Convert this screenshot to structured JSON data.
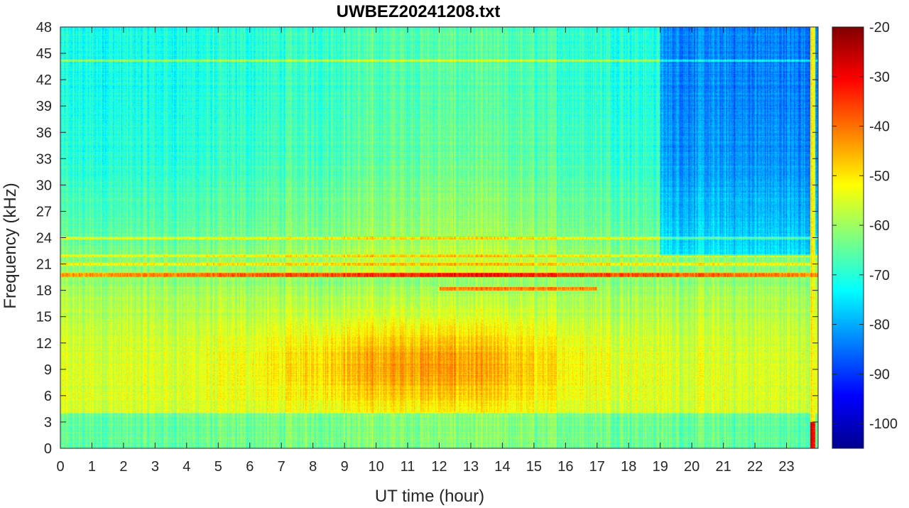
{
  "chart_data": {
    "type": "heatmap",
    "title": "UWBEZ20241208.txt",
    "xlabel": "UT time (hour)",
    "ylabel": "Frequency (kHz)",
    "xlim": [
      0,
      24
    ],
    "ylim": [
      0,
      48
    ],
    "xticks": [
      "0",
      "1",
      "2",
      "3",
      "4",
      "5",
      "6",
      "7",
      "8",
      "9",
      "10",
      "11",
      "12",
      "13",
      "14",
      "15",
      "16",
      "17",
      "18",
      "19",
      "20",
      "21",
      "22",
      "23"
    ],
    "yticks": [
      "0",
      "3",
      "6",
      "9",
      "12",
      "15",
      "18",
      "21",
      "24",
      "27",
      "30",
      "33",
      "36",
      "39",
      "42",
      "45",
      "48"
    ],
    "colorbar": {
      "colormap": "jet",
      "clim": [
        -105,
        -20
      ],
      "ticks": [
        "-20",
        "-30",
        "-40",
        "-50",
        "-60",
        "-70",
        "-80",
        "-90",
        "-100"
      ]
    },
    "features": {
      "background_level_low_freq": -55,
      "background_level_high_freq": -72,
      "strong_line_khz": 19.8,
      "strong_line_level": -32,
      "secondary_line_khz": 18.2,
      "secondary_line_level": -42,
      "daytime_peak_hours": [
        6,
        15
      ],
      "daytime_peak_freq_khz": [
        4,
        15
      ],
      "daytime_peak_level": -45
    }
  }
}
